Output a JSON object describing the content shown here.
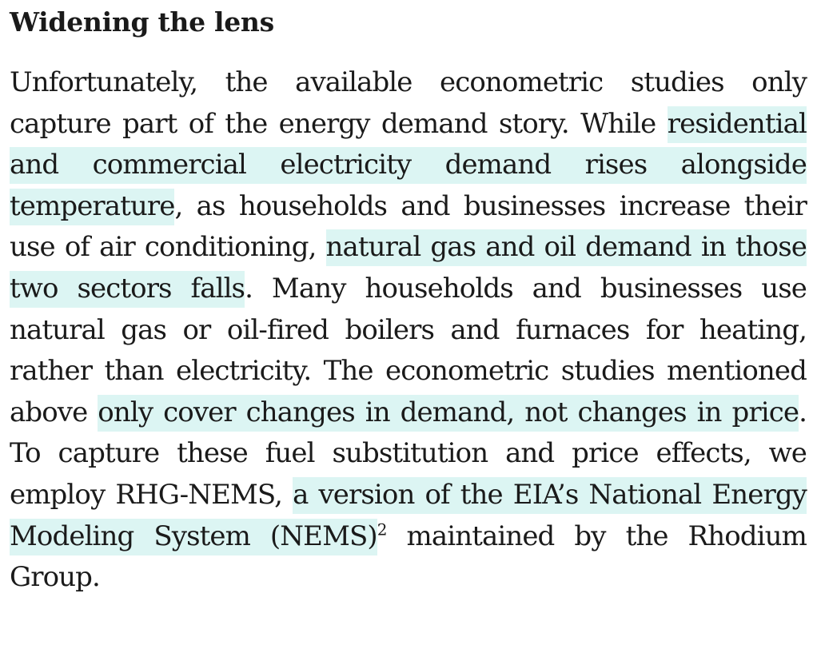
{
  "heading": "Widening the lens",
  "paragraph": {
    "s1": "Unfortunately, the available econometric studies only capture part of the energy demand story. While ",
    "h1": "residential and commercial electricity demand rises alongside temperature",
    "s2": ", as households and businesses increase their use of air conditioning, ",
    "h2": "natural gas and oil demand in those two sectors falls",
    "s3": ". Many households and businesses use natural gas or oil-fired boilers and furnaces for heating, rather than electricity. The econometric studies mentioned above ",
    "h3": "only cover changes in demand, not changes in price",
    "s4": ". To capture these fuel substitution and price effects, we employ RHG-NEMS, ",
    "h4": "a version of the EIA’s National Energy Modeling System (NEMS)",
    "footnote": "2",
    "s5": " maintained by the Rhodium Group."
  },
  "colors": {
    "highlight": "#dcf5f3",
    "text": "#1a1a1a"
  }
}
